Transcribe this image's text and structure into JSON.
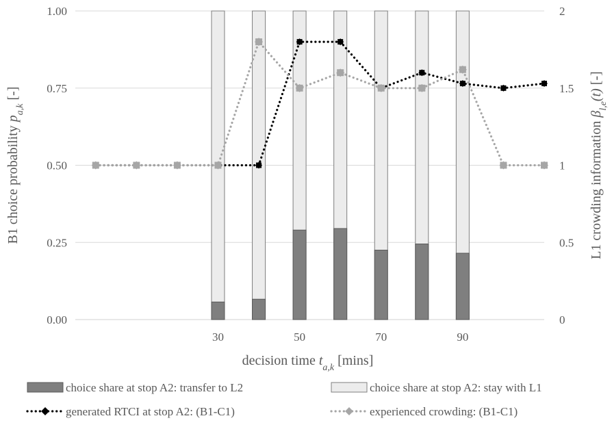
{
  "chart_data": {
    "type": "bar+line",
    "x_categories": [
      "5",
      "10",
      "15",
      "20",
      "25",
      "30",
      "35",
      "40",
      "45",
      "50",
      "55",
      "60",
      "65",
      "70",
      "75",
      "80",
      "85",
      "90",
      "95",
      "100",
      "105",
      "110"
    ],
    "x_tick_labels": [
      {
        "label": "30",
        "x": 35
      },
      {
        "label": "50",
        "x": 55
      },
      {
        "label": "70",
        "x": 75
      },
      {
        "label": "90",
        "x": 95
      }
    ],
    "xlabel": {
      "main": "decision time ",
      "var": "t",
      "sub": "a,k",
      "unit": " [mins]"
    },
    "ylabel_left": {
      "main": "B1 choice probability ",
      "var": "p",
      "sub": "a,k",
      "unit": " [-]"
    },
    "ylabel_right": {
      "main": "L1 crowding information ",
      "var": "β",
      "sub": "l,e",
      "arg": "(t)",
      "unit": " [-]"
    },
    "ylim_left": [
      0,
      1
    ],
    "ylim_right": [
      0,
      2
    ],
    "yticks_left": [
      "0.00",
      "0.25",
      "0.50",
      "0.75",
      "1.00"
    ],
    "yticks_right": [
      "0",
      "0.5",
      "1",
      "1.5",
      "2"
    ],
    "grid": "horizontal",
    "bars": {
      "x": [
        35,
        45,
        55,
        65,
        75,
        85,
        95
      ],
      "transfer_to_L2": [
        0.057,
        0.066,
        0.29,
        0.295,
        0.225,
        0.245,
        0.215
      ],
      "stay_with_L1_total": [
        1.0,
        1.0,
        1.0,
        1.0,
        1.0,
        1.0,
        1.0
      ]
    },
    "series": [
      {
        "name": "generated RTCI at stop A2: (B1-C1)",
        "axis": "right",
        "color": "#000000",
        "x": [
          5,
          15,
          25,
          35,
          45,
          55,
          65,
          75,
          85,
          95,
          105,
          115
        ],
        "values": [
          1,
          1,
          1,
          1,
          1,
          1.8,
          1.8,
          1.5,
          1.6,
          1.53,
          1.5,
          1.53
        ]
      },
      {
        "name": "experienced crowding: (B1-C1)",
        "axis": "right",
        "color": "#a6a6a6",
        "x": [
          5,
          15,
          25,
          35,
          45,
          55,
          65,
          75,
          85,
          95,
          105,
          115
        ],
        "values": [
          1,
          1,
          1,
          1,
          1.8,
          1.5,
          1.6,
          1.5,
          1.5,
          1.62,
          1,
          1
        ]
      }
    ],
    "legend": [
      {
        "type": "bar",
        "color": "#7f7f7f",
        "label": "choice share at stop A2: transfer to L2"
      },
      {
        "type": "bar",
        "color": "#ececec",
        "label": "choice share at stop A2: stay with L1"
      },
      {
        "type": "line",
        "color": "#000000",
        "label": "generated RTCI at stop A2: (B1-C1)"
      },
      {
        "type": "line",
        "color": "#a6a6a6",
        "label": "experienced crowding: (B1-C1)"
      }
    ],
    "legend_position": "bottom"
  }
}
